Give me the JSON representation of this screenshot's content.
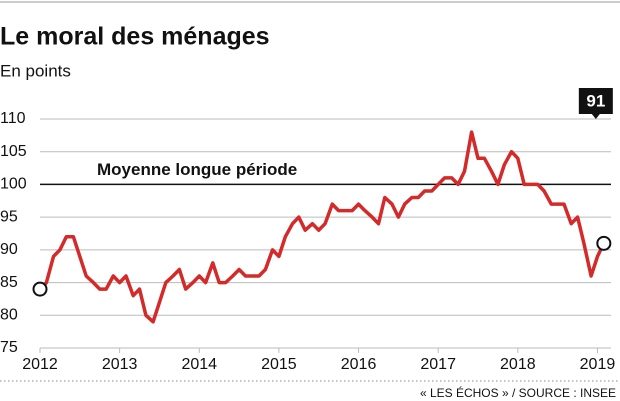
{
  "chart_data": {
    "type": "line",
    "title": "Le moral des ménages",
    "subtitle": "En points",
    "source": "« LES ÉCHOS » / SOURCE : INSEE",
    "x": [
      2012,
      2012.08,
      2012.17,
      2012.25,
      2012.33,
      2012.42,
      2012.5,
      2012.58,
      2012.67,
      2012.75,
      2012.83,
      2012.92,
      2013,
      2013.08,
      2013.17,
      2013.25,
      2013.33,
      2013.42,
      2013.5,
      2013.58,
      2013.67,
      2013.75,
      2013.83,
      2013.92,
      2014,
      2014.08,
      2014.17,
      2014.25,
      2014.33,
      2014.42,
      2014.5,
      2014.58,
      2014.67,
      2014.75,
      2014.83,
      2014.92,
      2015,
      2015.08,
      2015.17,
      2015.25,
      2015.33,
      2015.42,
      2015.5,
      2015.58,
      2015.67,
      2015.75,
      2015.83,
      2015.92,
      2016,
      2016.08,
      2016.17,
      2016.25,
      2016.33,
      2016.42,
      2016.5,
      2016.58,
      2016.67,
      2016.75,
      2016.83,
      2016.92,
      2017,
      2017.08,
      2017.17,
      2017.25,
      2017.33,
      2017.42,
      2017.5,
      2017.58,
      2017.67,
      2017.75,
      2017.83,
      2017.92,
      2018,
      2018.08,
      2018.17,
      2018.25,
      2018.33,
      2018.42,
      2018.5,
      2018.58,
      2018.67,
      2018.75,
      2018.83,
      2018.92,
      2019,
      2019.08
    ],
    "series": [
      {
        "color": "#d42a2a",
        "values": [
          84,
          85,
          89,
          90,
          92,
          92,
          89,
          86,
          85,
          84,
          84,
          86,
          85,
          86,
          83,
          84,
          80,
          79,
          82,
          85,
          86,
          87,
          84,
          85,
          86,
          85,
          88,
          85,
          85,
          86,
          87,
          86,
          86,
          86,
          87,
          90,
          89,
          92,
          94,
          95,
          93,
          94,
          93,
          94,
          97,
          96,
          96,
          96,
          97,
          96,
          95,
          94,
          98,
          97,
          95,
          97,
          98,
          98,
          99,
          99,
          100,
          101,
          101,
          100,
          102,
          108,
          104,
          104,
          102,
          100,
          103,
          105,
          104,
          100,
          100,
          100,
          99,
          97,
          97,
          97,
          94,
          95,
          91,
          86,
          89,
          91
        ]
      }
    ],
    "end_label": "91",
    "reference_line": {
      "value": 100,
      "label": "Moyenne longue période"
    },
    "xlim": [
      2012,
      2019.17
    ],
    "xticks": [
      2012,
      2013,
      2014,
      2015,
      2016,
      2017,
      2018,
      2019
    ],
    "ylim": [
      75,
      110
    ],
    "yticks": [
      75,
      80,
      85,
      90,
      95,
      100,
      105,
      110
    ],
    "grid": true
  }
}
